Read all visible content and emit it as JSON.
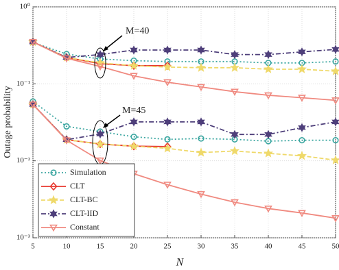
{
  "chart_data": {
    "type": "line",
    "xlabel": "N",
    "ylabel": "Outage probability",
    "x": [
      5,
      10,
      15,
      20,
      25,
      30,
      35,
      40,
      45,
      50
    ],
    "xlim": [
      5,
      50
    ],
    "xticks": [
      5,
      10,
      15,
      20,
      25,
      30,
      35,
      40,
      45,
      50
    ],
    "ylim": [
      0.001,
      1
    ],
    "ylog": true,
    "yticks": [
      {
        "value": 0.001,
        "label": "10⁻³"
      },
      {
        "value": 0.01,
        "label": "10⁻²"
      },
      {
        "value": 0.1,
        "label": "10⁻¹"
      },
      {
        "value": 1,
        "label": "10⁰"
      }
    ],
    "grid": true,
    "legend": "lower left",
    "series": [
      {
        "name": "Simulation",
        "color": "#3aa6a0",
        "marker": "circle",
        "dash": "dotted"
      },
      {
        "name": "CLT",
        "color": "#e8382f",
        "marker": "diamond",
        "dash": "solid"
      },
      {
        "name": "CLT-BC",
        "color": "#efd96a",
        "marker": "star",
        "dash": "dashed"
      },
      {
        "name": "CLT-IID",
        "color": "#4e3f7a",
        "marker": "hexagram",
        "dash": "dashdot"
      },
      {
        "name": "Constant",
        "color": "#f08a80",
        "marker": "triangle-down",
        "dash": "solid"
      }
    ],
    "groups": [
      {
        "label": "M=40",
        "values": [
          [
            0.345,
            0.244,
            0.21,
            0.2,
            0.195,
            0.195,
            0.195,
            0.187,
            0.187,
            0.195
          ],
          [
            0.35,
            0.22,
            0.183,
            0.172,
            0.172,
            null,
            null,
            null,
            null,
            null
          ],
          [
            0.35,
            0.22,
            0.187,
            0.172,
            0.165,
            0.162,
            0.162,
            0.155,
            0.155,
            0.146
          ],
          [
            0.35,
            0.22,
            0.24,
            0.275,
            0.275,
            0.275,
            0.24,
            0.24,
            0.26,
            0.28
          ],
          [
            0.35,
            0.215,
            0.168,
            0.127,
            0.105,
            0.091,
            0.079,
            0.071,
            0.066,
            0.061
          ]
        ]
      },
      {
        "label": "M=45",
        "values": [
          [
            0.059,
            0.028,
            0.024,
            0.0205,
            0.019,
            0.0195,
            0.019,
            0.018,
            0.0185,
            0.0185
          ],
          [
            0.054,
            0.0188,
            0.0165,
            0.0155,
            0.0153,
            null,
            null,
            null,
            null,
            null
          ],
          [
            0.054,
            0.0188,
            0.0165,
            0.0155,
            0.0145,
            0.0128,
            0.0134,
            0.0125,
            0.0116,
            0.0102
          ],
          [
            0.054,
            0.0188,
            0.0223,
            0.032,
            0.032,
            0.032,
            0.022,
            0.022,
            0.027,
            0.032
          ],
          [
            0.054,
            0.0185,
            0.0101,
            0.0068,
            0.0049,
            0.0037,
            0.0029,
            0.0024,
            0.0021,
            0.0018
          ]
        ]
      }
    ]
  }
}
